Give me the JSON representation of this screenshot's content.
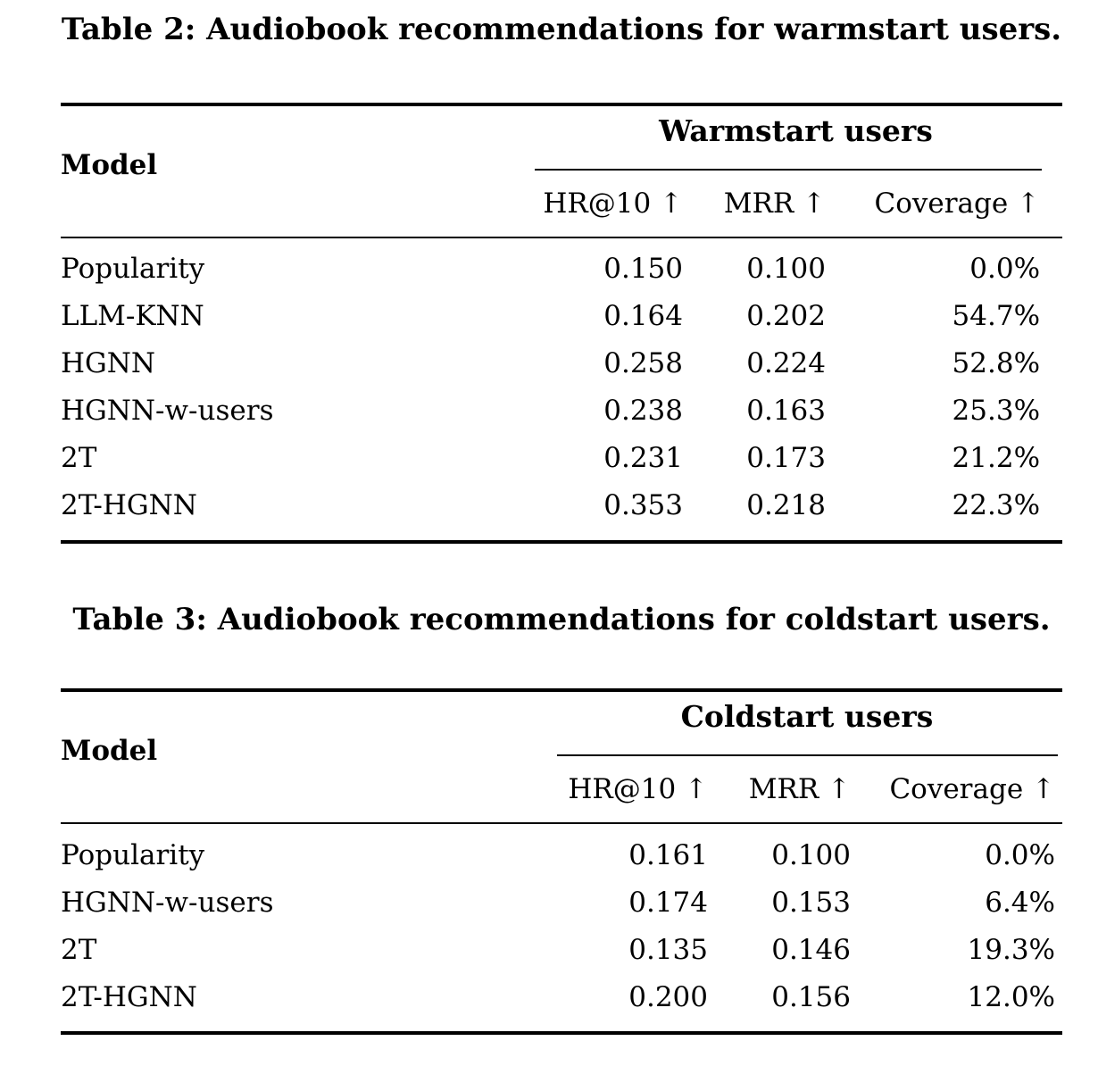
{
  "page": {
    "background": "#ffffff",
    "text_color": "#000000",
    "rule_color": "#000000"
  },
  "tables": [
    {
      "caption": "Table 2: Audiobook recommendations for warmstart users.",
      "model_header": "Model",
      "group_header": "Warmstart users",
      "columns": [
        "HR@10 ↑",
        "MRR ↑",
        "Coverage ↑"
      ],
      "rows": [
        {
          "model": "Popularity",
          "hr10": "0.150",
          "mrr": "0.100",
          "coverage": "0.0%"
        },
        {
          "model": "LLM-KNN",
          "hr10": "0.164",
          "mrr": "0.202",
          "coverage": "54.7%"
        },
        {
          "model": "HGNN",
          "hr10": "0.258",
          "mrr": "0.224",
          "coverage": "52.8%"
        },
        {
          "model": "HGNN-w-users",
          "hr10": "0.238",
          "mrr": "0.163",
          "coverage": "25.3%"
        },
        {
          "model": "2T",
          "hr10": "0.231",
          "mrr": "0.173",
          "coverage": "21.2%"
        },
        {
          "model": "2T-HGNN",
          "hr10": "0.353",
          "mrr": "0.218",
          "coverage": "22.3%"
        }
      ]
    },
    {
      "caption": "Table 3: Audiobook recommendations for coldstart users.",
      "model_header": "Model",
      "group_header": "Coldstart users",
      "columns": [
        "HR@10 ↑",
        "MRR ↑",
        "Coverage ↑"
      ],
      "rows": [
        {
          "model": "Popularity",
          "hr10": "0.161",
          "mrr": "0.100",
          "coverage": "0.0%"
        },
        {
          "model": "HGNN-w-users",
          "hr10": "0.174",
          "mrr": "0.153",
          "coverage": "6.4%"
        },
        {
          "model": "2T",
          "hr10": "0.135",
          "mrr": "0.146",
          "coverage": "19.3%"
        },
        {
          "model": "2T-HGNN",
          "hr10": "0.200",
          "mrr": "0.156",
          "coverage": "12.0%"
        }
      ]
    }
  ]
}
